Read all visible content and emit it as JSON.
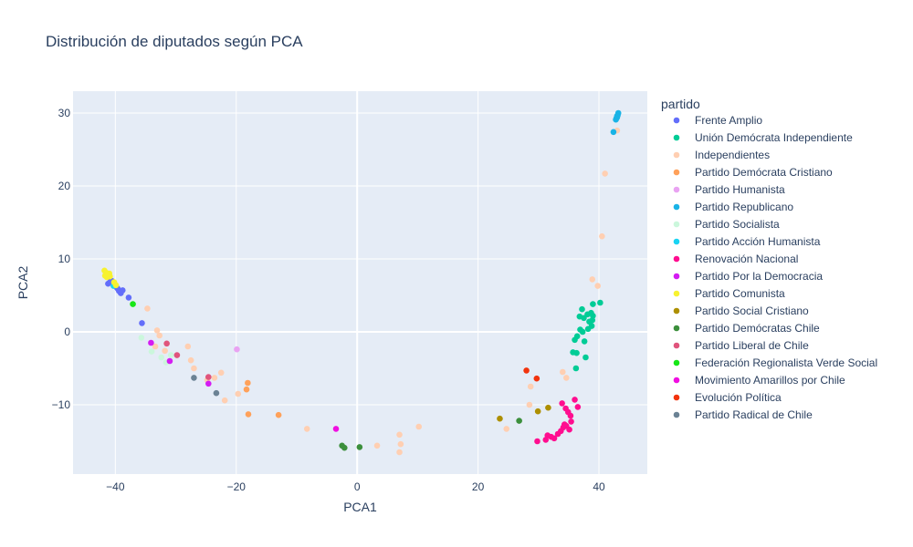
{
  "chart_data": {
    "type": "scatter",
    "title": "Distribución de diputados según PCA",
    "xlabel": "PCA1",
    "ylabel": "PCA2",
    "xlim": [
      -47,
      48
    ],
    "ylim": [
      -19.5,
      33
    ],
    "xticks": [
      -40,
      -20,
      0,
      20,
      40
    ],
    "yticks": [
      -10,
      0,
      10,
      20,
      30
    ],
    "grid": true,
    "legend_title": "partido",
    "legend_position": "right",
    "series": [
      {
        "name": "Frente Amplio",
        "color": "#636efa",
        "x": [
          -41.2,
          -40.6,
          -40.2,
          -39.8,
          -39.4,
          -39.1,
          -38.8,
          -40.9,
          -39.6,
          -37.8,
          -35.6
        ],
        "y": [
          6.6,
          7.0,
          6.4,
          6.1,
          5.6,
          5.3,
          5.7,
          6.8,
          5.9,
          4.7,
          1.2
        ]
      },
      {
        "name": "Unión Demócrata Independiente",
        "color": "#00cc96",
        "x": [
          37.2,
          38.1,
          38.7,
          39.0,
          36.8,
          37.5,
          38.4,
          38.9,
          36.9,
          37.3,
          38.2,
          38.8,
          36.4,
          36.0,
          35.7,
          37.6,
          36.3,
          39.0,
          40.2,
          37.8,
          36.2
        ],
        "y": [
          3.1,
          2.4,
          2.6,
          2.2,
          2.1,
          1.9,
          1.4,
          1.6,
          0.3,
          0.0,
          0.4,
          0.8,
          -0.6,
          -1.1,
          -2.8,
          -1.3,
          -2.9,
          3.8,
          4.0,
          -3.5,
          -5.0
        ]
      },
      {
        "name": "Independientes",
        "color": "#ffcfb2",
        "x": [
          43.0,
          41.0,
          40.5,
          39.8,
          38.9,
          -34.7,
          -33.1,
          -32.7,
          -33.4,
          -31.8,
          -28.0,
          -27.5,
          -27.0,
          -24.8,
          -23.6,
          -22.5,
          -21.9,
          -19.7,
          -8.3,
          3.3,
          7.0,
          7.2,
          7.0,
          10.2,
          24.7,
          28.5,
          28.7,
          34.0,
          34.6
        ],
        "y": [
          27.6,
          21.7,
          13.1,
          6.3,
          7.2,
          3.2,
          0.2,
          -0.5,
          -2.0,
          -2.6,
          -2.0,
          -3.9,
          -5.0,
          -6.6,
          -6.3,
          -5.6,
          -9.4,
          -8.5,
          -13.3,
          -15.6,
          -14.1,
          -15.4,
          -16.5,
          -13.0,
          -13.3,
          -10.0,
          -7.5,
          -5.5,
          -6.3
        ]
      },
      {
        "name": "Partido Demócrata Cristiano",
        "color": "#ffa15a",
        "x": [
          -18.1,
          -18.3,
          -18.0,
          -13.0
        ],
        "y": [
          -7.0,
          -7.9,
          -11.3,
          -11.4
        ]
      },
      {
        "name": "Partido Humanista",
        "color": "#e9a3f2",
        "x": [
          -19.9
        ],
        "y": [
          -2.4
        ]
      },
      {
        "name": "Partido Republicano",
        "color": "#19b3e6",
        "x": [
          42.8,
          43.0,
          43.1,
          43.2,
          42.9,
          43.0,
          42.4
        ],
        "y": [
          29.1,
          29.4,
          29.7,
          30.0,
          29.3,
          29.6,
          27.4
        ]
      },
      {
        "name": "Partido Socialista",
        "color": "#cbf7dc",
        "x": [
          -35.7,
          -34.0,
          -32.4,
          -31.6,
          -30.8
        ],
        "y": [
          -0.8,
          -2.7,
          -3.5,
          -4.2,
          -3.2
        ]
      },
      {
        "name": "Partido Acción Humanista",
        "color": "#19d3f3",
        "x": [
          -40.3
        ],
        "y": [
          6.3
        ]
      },
      {
        "name": "Renovación Nacional",
        "color": "#ff0d8f",
        "x": [
          33.9,
          34.5,
          34.9,
          35.3,
          35.4,
          34.6,
          34.1,
          35.1,
          34.3,
          33.7,
          33.2,
          32.6,
          32.1,
          31.5,
          31.2,
          29.8,
          36.0,
          36.5
        ],
        "y": [
          -9.8,
          -10.5,
          -11.0,
          -11.5,
          -12.3,
          -12.9,
          -13.1,
          -13.4,
          -12.7,
          -13.6,
          -14.0,
          -14.6,
          -14.4,
          -14.2,
          -14.8,
          -15.0,
          -9.3,
          -10.3
        ]
      },
      {
        "name": "Partido Por la Democracia",
        "color": "#d41cf2",
        "x": [
          -34.1,
          -31.0,
          -24.6
        ],
        "y": [
          -1.5,
          -4.0,
          -7.1
        ]
      },
      {
        "name": "Partido Comunista",
        "color": "#f7f230",
        "x": [
          -41.8,
          -41.5,
          -41.2,
          -40.9,
          -41.7,
          -41.4,
          -40.2,
          -39.9,
          -41.0
        ],
        "y": [
          8.4,
          8.1,
          7.8,
          7.6,
          7.7,
          7.5,
          6.8,
          6.4,
          8.0
        ]
      },
      {
        "name": "Partido Social Cristiano",
        "color": "#ad8f00",
        "x": [
          23.6,
          29.9,
          31.6
        ],
        "y": [
          -11.9,
          -10.9,
          -10.4
        ]
      },
      {
        "name": "Partido Demócratas Chile",
        "color": "#3c8f3c",
        "x": [
          -2.5,
          -2.1,
          0.4,
          26.8
        ],
        "y": [
          -15.6,
          -15.9,
          -15.8,
          -12.2
        ]
      },
      {
        "name": "Partido Liberal de Chile",
        "color": "#e0547c",
        "x": [
          -31.5,
          -29.8,
          -24.6
        ],
        "y": [
          -1.6,
          -3.2,
          -6.2
        ]
      },
      {
        "name": "Federación Regionalista Verde Social",
        "color": "#17e617",
        "x": [
          -37.1
        ],
        "y": [
          3.8
        ]
      },
      {
        "name": "Movimiento Amarillos por Chile",
        "color": "#f00fe1",
        "x": [
          -3.5
        ],
        "y": [
          -13.3
        ]
      },
      {
        "name": "Evolución Política",
        "color": "#f2330d",
        "x": [
          28.0,
          29.7
        ],
        "y": [
          -5.3,
          -6.4
        ]
      },
      {
        "name": "Partido Radical de Chile",
        "color": "#6b8294",
        "x": [
          -27.0,
          -23.3
        ],
        "y": [
          -6.3,
          -8.4
        ]
      }
    ]
  }
}
